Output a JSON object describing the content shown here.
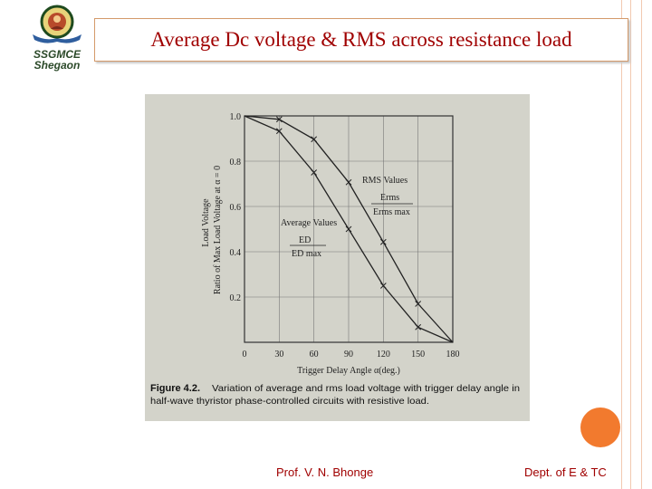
{
  "slide": {
    "title": "Average Dc voltage  & RMS across resistance load",
    "logo_text_1": "SSGMCE",
    "logo_text_2": "Shegaon",
    "footer_left": "Prof. V. N. Bhonge",
    "footer_right": "Dept. of  E & TC",
    "title_color": "#a00000",
    "accent_color": "#f27a2e"
  },
  "chart_data": {
    "type": "line",
    "xlabel": "Trigger Delay Angle α(deg.)",
    "ylabel": "Ratio of Max Load Voltage at α = 0",
    "ylabel2": "Load Voltage",
    "xlim": [
      0,
      180
    ],
    "ylim": [
      0,
      1.0
    ],
    "x_ticks": [
      "0",
      "30",
      "60",
      "90",
      "120",
      "150",
      "180"
    ],
    "y_ticks": [
      "0.2",
      "0.4",
      "0.6",
      "0.8",
      "1.0"
    ],
    "series": [
      {
        "name": "RMS Values",
        "label_num": "Erms",
        "label_den": "Erms max",
        "x": [
          0,
          30,
          60,
          90,
          120,
          150,
          180
        ],
        "y": [
          1.0,
          0.985,
          0.897,
          0.707,
          0.443,
          0.17,
          0.0
        ]
      },
      {
        "name": "Average Values",
        "label_num": "ED",
        "label_den": "ED max",
        "x": [
          0,
          30,
          60,
          90,
          120,
          150,
          180
        ],
        "y": [
          1.0,
          0.933,
          0.75,
          0.5,
          0.25,
          0.067,
          0.0
        ]
      }
    ],
    "caption_bold": "Figure 4.2.",
    "caption_line1": "Variation of average and rms load voltage with trigger delay angle in",
    "caption_line2": "half-wave thyristor phase-controlled circuits with resistive load."
  }
}
